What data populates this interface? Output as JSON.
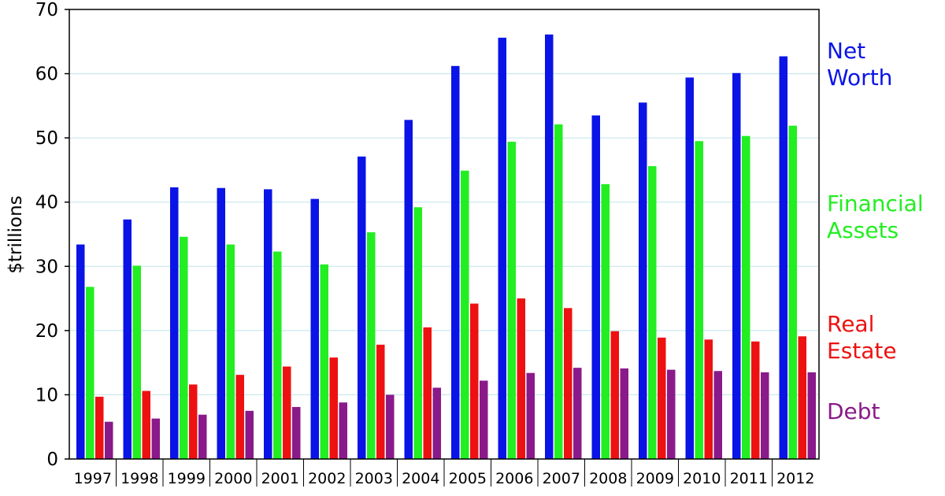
{
  "chart_data": {
    "type": "bar",
    "ylabel": "$trillions",
    "ylim": [
      0,
      70
    ],
    "yticks": [
      0,
      10,
      20,
      30,
      40,
      50,
      60,
      70
    ],
    "grid": true,
    "categories": [
      "1997",
      "1998",
      "1999",
      "2000",
      "2001",
      "2002",
      "2003",
      "2004",
      "2005",
      "2006",
      "2007",
      "2008",
      "2009",
      "2010",
      "2011",
      "2012"
    ],
    "series": [
      {
        "name": "Net Worth",
        "color": "#0a14e6",
        "values": [
          33.4,
          37.3,
          42.3,
          42.2,
          42.0,
          40.5,
          47.1,
          52.8,
          61.2,
          65.6,
          66.1,
          53.5,
          55.5,
          59.4,
          60.1,
          62.7
        ]
      },
      {
        "name": "Financial Assets",
        "color": "#22ee22",
        "values": [
          26.8,
          30.1,
          34.6,
          33.4,
          32.3,
          30.3,
          35.3,
          39.2,
          44.9,
          49.4,
          52.1,
          42.8,
          45.6,
          49.5,
          50.3,
          51.9
        ]
      },
      {
        "name": "Real Estate",
        "color": "#ee1111",
        "values": [
          9.7,
          10.6,
          11.6,
          13.1,
          14.4,
          15.8,
          17.8,
          20.5,
          24.2,
          25.0,
          23.5,
          19.9,
          18.9,
          18.6,
          18.3,
          19.1
        ]
      },
      {
        "name": "Debt",
        "color": "#8a1a8a",
        "values": [
          5.8,
          6.3,
          6.9,
          7.5,
          8.1,
          8.8,
          10.0,
          11.1,
          12.2,
          13.4,
          14.2,
          14.1,
          13.9,
          13.7,
          13.5,
          13.5
        ]
      }
    ],
    "legend": [
      {
        "line1": "Net",
        "line2": "Worth",
        "color": "#0a14e6"
      },
      {
        "line1": "Financial",
        "line2": "Assets",
        "color": "#22ee22"
      },
      {
        "line1": "Real",
        "line2": "Estate",
        "color": "#ee1111"
      },
      {
        "line1": "Debt",
        "line2": "",
        "color": "#8a1a8a"
      }
    ]
  }
}
